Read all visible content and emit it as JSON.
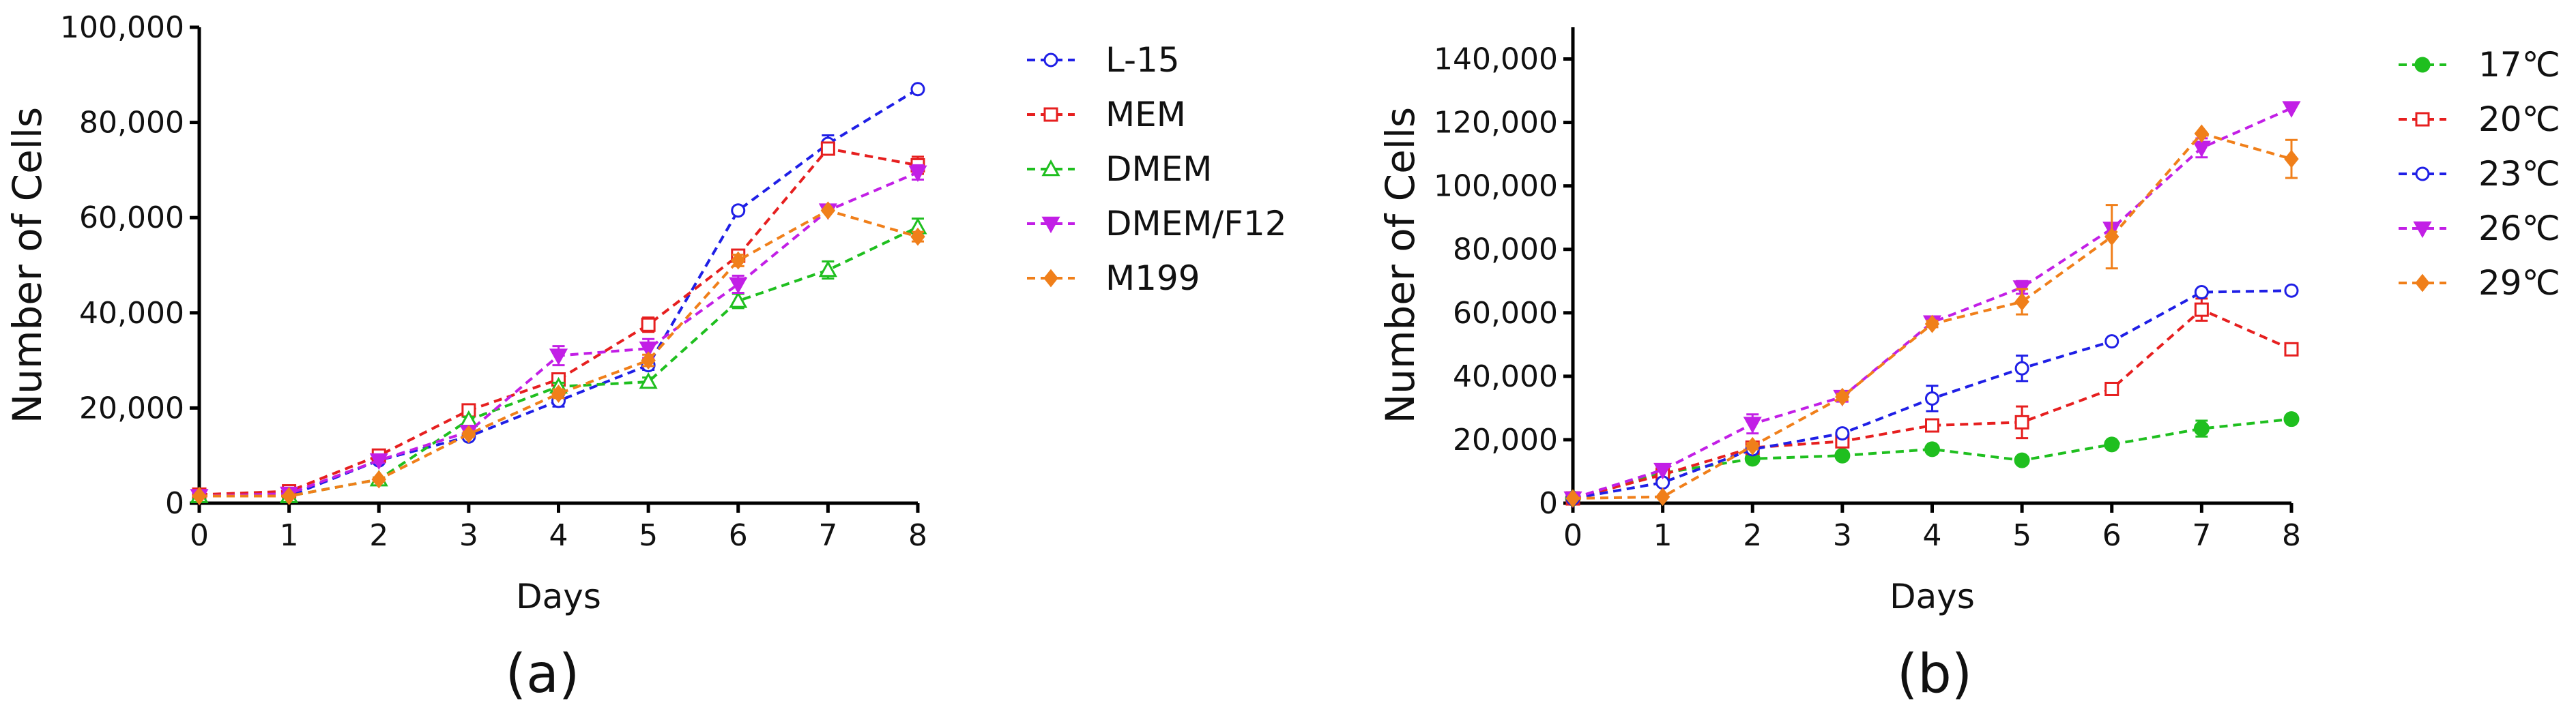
{
  "chart_data": [
    {
      "type": "line",
      "panel_label": "(a)",
      "xlabel": "Days",
      "ylabel": "Number of Cells",
      "xlim": [
        0,
        8
      ],
      "ylim": [
        0,
        100000
      ],
      "x_ticks": [
        "0",
        "1",
        "2",
        "3",
        "4",
        "5",
        "6",
        "7",
        "8"
      ],
      "y_ticks": [
        "0",
        "20,000",
        "40,000",
        "60,000",
        "80,000",
        "100,000"
      ],
      "legend_position": "right",
      "x": [
        0,
        1,
        2,
        3,
        4,
        5,
        6,
        7,
        8
      ],
      "series": [
        {
          "name": "L-15",
          "color": "#1f1fe6",
          "marker": "open-circle",
          "values": [
            1500,
            1500,
            9000,
            14000,
            21500,
            29000,
            61500,
            75500,
            87000
          ],
          "err": [
            0,
            0,
            500,
            500,
            1200,
            1000,
            0,
            1800,
            0
          ]
        },
        {
          "name": "MEM",
          "color": "#e61f1f",
          "marker": "open-square",
          "values": [
            1800,
            2500,
            10000,
            19500,
            26000,
            37500,
            52000,
            74500,
            71000
          ],
          "err": [
            0,
            0,
            800,
            600,
            800,
            1500,
            1000,
            0,
            1800
          ]
        },
        {
          "name": "DMEM",
          "color": "#1fbf1f",
          "marker": "open-triangle-up",
          "values": [
            1500,
            1500,
            5000,
            17500,
            24500,
            25500,
            42500,
            49000,
            58000
          ],
          "err": [
            0,
            0,
            400,
            600,
            800,
            900,
            1500,
            1800,
            1800
          ]
        },
        {
          "name": "DMEM/F12",
          "color": "#c21fe6",
          "marker": "filled-triangle-down",
          "values": [
            1500,
            2000,
            9000,
            15000,
            31000,
            32500,
            46000,
            61500,
            69500
          ],
          "err": [
            0,
            0,
            500,
            600,
            2000,
            2000,
            1800,
            0,
            1500
          ]
        },
        {
          "name": "M199",
          "color": "#f07f1a",
          "marker": "filled-diamond",
          "values": [
            1500,
            1500,
            5000,
            14500,
            23000,
            30000,
            51000,
            61500,
            56000
          ],
          "err": [
            0,
            0,
            400,
            500,
            900,
            1200,
            1200,
            0,
            1000
          ]
        }
      ]
    },
    {
      "type": "line",
      "panel_label": "(b)",
      "xlabel": "Days",
      "ylabel": "Number of Cells",
      "xlim": [
        0,
        8
      ],
      "ylim": [
        0,
        150000
      ],
      "x_ticks": [
        "0",
        "1",
        "2",
        "3",
        "4",
        "5",
        "6",
        "7",
        "8"
      ],
      "y_ticks": [
        "0",
        "20,000",
        "40,000",
        "60,000",
        "80,000",
        "100,000",
        "120,000",
        "140,000"
      ],
      "legend_position": "top-right",
      "x": [
        0,
        1,
        2,
        3,
        4,
        5,
        6,
        7,
        8
      ],
      "series": [
        {
          "name": "17℃",
          "color": "#1fbf1f",
          "marker": "filled-circle",
          "values": [
            1500,
            9500,
            14000,
            15000,
            17000,
            13500,
            18500,
            23500,
            26500
          ],
          "err": [
            0,
            0,
            0,
            0,
            0,
            0,
            0,
            2500,
            0
          ]
        },
        {
          "name": "20℃",
          "color": "#e61f1f",
          "marker": "open-square",
          "values": [
            1500,
            9000,
            17500,
            19500,
            24500,
            25500,
            36000,
            61000,
            48500
          ],
          "err": [
            0,
            0,
            1000,
            1000,
            1500,
            5000,
            0,
            3500,
            0
          ]
        },
        {
          "name": "23℃",
          "color": "#1f1fe6",
          "marker": "open-circle",
          "values": [
            1500,
            6500,
            17000,
            22000,
            33000,
            42500,
            51000,
            66500,
            67000
          ],
          "err": [
            0,
            0,
            1000,
            1000,
            4000,
            4000,
            0,
            0,
            0
          ]
        },
        {
          "name": "26℃",
          "color": "#c21fe6",
          "marker": "filled-triangle-down",
          "values": [
            1500,
            10500,
            25000,
            33500,
            57000,
            68000,
            86500,
            112000,
            124500
          ],
          "err": [
            0,
            0,
            3000,
            1500,
            1500,
            2000,
            0,
            3000,
            0
          ]
        },
        {
          "name": "29℃",
          "color": "#f07f1a",
          "marker": "filled-diamond",
          "values": [
            1500,
            2000,
            18000,
            33500,
            56500,
            63500,
            84000,
            116500,
            108500
          ],
          "err": [
            0,
            0,
            1000,
            1000,
            1000,
            4000,
            10000,
            0,
            6000
          ]
        }
      ]
    }
  ]
}
